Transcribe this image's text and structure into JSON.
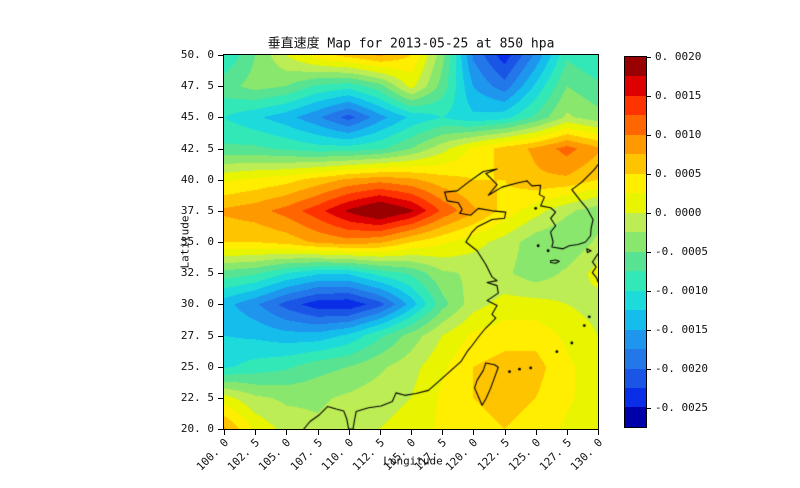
{
  "title": "垂直速度 Map for 2013-05-25 at 850 hpa",
  "axes": {
    "x_label": "Longitude",
    "y_label": "Latitude",
    "x_tick_labels": [
      "100. 0",
      "102. 5",
      "105. 0",
      "107. 5",
      "110. 0",
      "112. 5",
      "115. 0",
      "117. 5",
      "120. 0",
      "122. 5",
      "125. 0",
      "127. 5",
      "130. 0"
    ],
    "y_tick_labels": [
      "50. 0",
      "47. 5",
      "45. 0",
      "42. 5",
      "40. 0",
      "37. 5",
      "35. 0",
      "32. 5",
      "30. 0",
      "27. 5",
      "25. 0",
      "22. 5",
      "20. 0"
    ]
  },
  "colorbar": {
    "tick_labels": [
      "0. 0020",
      "0. 0015",
      "0. 0010",
      "0. 0005",
      "0. 0000",
      "-0. 0005",
      "-0. 0010",
      "-0. 0015",
      "-0. 0020",
      "-0. 0025"
    ],
    "tick_values": [
      0.002,
      0.0015,
      0.001,
      0.0005,
      0.0,
      -0.0005,
      -0.001,
      -0.0015,
      -0.002,
      -0.0025
    ],
    "min": -0.00275,
    "max": 0.002,
    "step": 0.00025,
    "colors_low_to_high": [
      "#0000aa",
      "#0a2ee8",
      "#1b55e6",
      "#2377e9",
      "#1e96ee",
      "#14bdec",
      "#1edbdb",
      "#33e8b7",
      "#58e392",
      "#8ae76e",
      "#bced55",
      "#e8f400",
      "#ffee00",
      "#ffc400",
      "#ff9900",
      "#ff6600",
      "#ff3300",
      "#dd0000",
      "#990000"
    ]
  },
  "chart_data": {
    "type": "heatmap",
    "subtype": "filled-contour-map",
    "title": "垂直速度 Map for 2013-05-25 at 850 hpa",
    "xlabel": "Longitude",
    "ylabel": "Latitude",
    "xlim": [
      100,
      130
    ],
    "ylim": [
      20,
      50
    ],
    "x": [
      100,
      102.5,
      105,
      107.5,
      110,
      112.5,
      115,
      117.5,
      120,
      122.5,
      125,
      127.5,
      130
    ],
    "y": [
      50,
      47.5,
      45,
      42.5,
      40,
      37.5,
      35,
      32.5,
      30,
      27.5,
      25,
      22.5,
      20
    ],
    "values": [
      [
        -0.001,
        -0.0005,
        0.0,
        0.0004,
        0.0006,
        0.0008,
        0.0005,
        -0.0004,
        -0.0018,
        -0.0024,
        -0.0017,
        -0.0008,
        -0.001
      ],
      [
        -0.0006,
        -0.0004,
        -0.0005,
        -0.0008,
        -0.0009,
        -0.0006,
        0.0001,
        -0.0006,
        -0.0015,
        -0.0019,
        -0.0012,
        -0.0005,
        -0.0007
      ],
      [
        -0.001,
        -0.0012,
        -0.0014,
        -0.0017,
        -0.0021,
        -0.0016,
        -0.0012,
        -0.001,
        -0.0012,
        -0.0011,
        -0.0007,
        -0.0002,
        -0.0004
      ],
      [
        -0.0007,
        -0.0007,
        -0.0008,
        -0.0009,
        -0.0009,
        -0.0008,
        -0.0005,
        -0.0001,
        0.0003,
        0.0006,
        0.0008,
        0.0011,
        0.0008
      ],
      [
        0.0002,
        0.0003,
        0.0004,
        0.0006,
        0.0008,
        0.0009,
        0.0008,
        0.0006,
        0.0005,
        0.0005,
        0.0007,
        0.0007,
        0.0005
      ],
      [
        0.0008,
        0.0009,
        0.0011,
        0.0014,
        0.0018,
        0.0021,
        0.0018,
        0.0012,
        0.0008,
        0.0004,
        0.0001,
        -0.0002,
        -0.0004
      ],
      [
        0.0005,
        0.0005,
        0.0006,
        0.0008,
        0.0009,
        0.0008,
        0.0005,
        0.0003,
        0.0001,
        -0.0001,
        -0.0004,
        -0.0005,
        -0.0002
      ],
      [
        -0.0006,
        -0.0007,
        -0.001,
        -0.0012,
        -0.0012,
        -0.0009,
        -0.0007,
        -0.0003,
        -0.0002,
        -0.0002,
        -0.0004,
        -0.0002,
        0.0001
      ],
      [
        -0.0014,
        -0.0017,
        -0.0021,
        -0.0024,
        -0.00245,
        -0.0021,
        -0.0014,
        -0.0006,
        -0.0001,
        0.0001,
        0.0001,
        0.0,
        -0.0001
      ],
      [
        -0.00125,
        -0.0013,
        -0.0014,
        -0.0014,
        -0.0012,
        -0.0008,
        -0.0004,
        0.0,
        0.0003,
        0.0004,
        0.0004,
        0.0002,
        0.0
      ],
      [
        -0.00105,
        -0.0009,
        -0.0008,
        -0.0006,
        -0.0005,
        -0.0003,
        -0.0001,
        0.0002,
        0.0005,
        0.0006,
        0.0006,
        0.0003,
        0.0001
      ],
      [
        0.0001,
        -0.0002,
        -0.0003,
        -0.0003,
        -0.0002,
        -0.0001,
        0.0,
        0.0003,
        0.0005,
        0.0006,
        0.0005,
        0.0003,
        0.0001
      ],
      [
        0.0008,
        0.0002,
        -0.0001,
        -0.0002,
        -0.0001,
        0.0,
        0.0001,
        0.0003,
        0.0004,
        0.0005,
        0.0004,
        0.0002,
        0.0001
      ]
    ],
    "coastlines": {
      "paths": [
        [
          [
            124.3,
            39.9
          ],
          [
            123.6,
            39.75
          ],
          [
            122.3,
            39.4
          ],
          [
            121.2,
            38.75
          ],
          [
            121.9,
            39.6
          ],
          [
            121.0,
            40.5
          ],
          [
            121.9,
            40.85
          ],
          [
            120.8,
            40.65
          ],
          [
            119.6,
            39.8
          ],
          [
            118.7,
            39.1
          ],
          [
            117.7,
            39.0
          ],
          [
            117.9,
            38.3
          ],
          [
            118.8,
            38.15
          ],
          [
            119.1,
            37.6
          ],
          [
            118.9,
            37.3
          ],
          [
            119.8,
            37.15
          ],
          [
            120.4,
            37.7
          ],
          [
            121.5,
            37.5
          ],
          [
            122.6,
            37.4
          ],
          [
            122.5,
            36.9
          ],
          [
            121.5,
            36.8
          ],
          [
            120.3,
            36.2
          ],
          [
            119.9,
            35.8
          ],
          [
            119.4,
            35.0
          ],
          [
            120.3,
            34.3
          ],
          [
            121.0,
            33.2
          ],
          [
            121.5,
            32.2
          ],
          [
            121.9,
            31.9
          ],
          [
            121.1,
            31.75
          ],
          [
            121.9,
            31.5
          ],
          [
            122.0,
            30.9
          ],
          [
            121.1,
            30.3
          ],
          [
            121.9,
            29.9
          ],
          [
            121.5,
            29.2
          ],
          [
            121.8,
            28.9
          ],
          [
            121.0,
            28.1
          ],
          [
            120.5,
            27.5
          ],
          [
            119.9,
            26.7
          ],
          [
            119.5,
            26.2
          ],
          [
            119.0,
            25.4
          ],
          [
            118.1,
            24.6
          ],
          [
            117.2,
            23.8
          ],
          [
            116.4,
            23.1
          ],
          [
            115.4,
            22.85
          ],
          [
            114.5,
            22.7
          ],
          [
            113.8,
            22.9
          ],
          [
            113.5,
            22.2
          ],
          [
            112.6,
            21.85
          ],
          [
            111.6,
            21.7
          ],
          [
            110.6,
            21.4
          ],
          [
            110.45,
            20.6
          ],
          [
            110.35,
            20.0
          ],
          [
            110.0,
            20.0
          ],
          [
            109.85,
            20.8
          ],
          [
            109.6,
            21.45
          ],
          [
            109.0,
            21.6
          ],
          [
            108.3,
            21.8
          ],
          [
            107.6,
            21.1
          ],
          [
            106.9,
            20.6
          ],
          [
            106.4,
            20.0
          ]
        ],
        [
          [
            124.3,
            39.9
          ],
          [
            124.7,
            39.5
          ],
          [
            125.4,
            39.55
          ],
          [
            125.3,
            38.8
          ],
          [
            125.7,
            38.6
          ],
          [
            125.4,
            37.9
          ],
          [
            126.2,
            37.75
          ],
          [
            126.6,
            37.4
          ],
          [
            126.2,
            36.9
          ],
          [
            126.6,
            36.3
          ],
          [
            126.2,
            35.8
          ],
          [
            126.4,
            35.0
          ],
          [
            126.3,
            34.6
          ],
          [
            127.2,
            34.45
          ],
          [
            127.7,
            34.7
          ],
          [
            128.4,
            34.8
          ],
          [
            129.0,
            35.0
          ],
          [
            129.4,
            35.5
          ],
          [
            129.45,
            36.1
          ],
          [
            129.6,
            36.8
          ],
          [
            129.1,
            37.7
          ],
          [
            128.6,
            38.3
          ],
          [
            127.9,
            39.2
          ],
          [
            128.7,
            39.8
          ],
          [
            129.7,
            40.8
          ],
          [
            130.0,
            41.2
          ]
        ],
        [
          [
            121.0,
            25.3
          ],
          [
            121.7,
            25.15
          ],
          [
            122.0,
            24.95
          ],
          [
            121.8,
            24.4
          ],
          [
            121.4,
            23.3
          ],
          [
            121.0,
            22.4
          ],
          [
            120.7,
            21.9
          ],
          [
            120.4,
            22.6
          ],
          [
            120.1,
            23.3
          ],
          [
            120.3,
            23.9
          ],
          [
            120.8,
            24.7
          ],
          [
            121.0,
            25.3
          ]
        ],
        [
          [
            126.2,
            33.5
          ],
          [
            126.6,
            33.55
          ],
          [
            126.9,
            33.45
          ],
          [
            126.6,
            33.3
          ],
          [
            126.2,
            33.35
          ],
          [
            126.2,
            33.5
          ]
        ],
        [
          [
            130.0,
            34.05
          ],
          [
            129.55,
            33.4
          ],
          [
            129.85,
            33.0
          ],
          [
            129.55,
            32.55
          ],
          [
            129.9,
            32.1
          ],
          [
            130.0,
            31.8
          ]
        ],
        [
          [
            129.1,
            34.45
          ],
          [
            129.45,
            34.3
          ],
          [
            129.15,
            34.15
          ],
          [
            129.1,
            34.45
          ]
        ]
      ],
      "island_dots": [
        [
          122.9,
          24.6
        ],
        [
          123.7,
          24.8
        ],
        [
          124.6,
          24.9
        ],
        [
          126.7,
          26.2
        ],
        [
          127.9,
          26.9
        ],
        [
          128.9,
          28.3
        ],
        [
          129.3,
          29.0
        ],
        [
          125.0,
          37.7
        ],
        [
          125.2,
          34.7
        ],
        [
          126.0,
          34.3
        ]
      ]
    }
  }
}
